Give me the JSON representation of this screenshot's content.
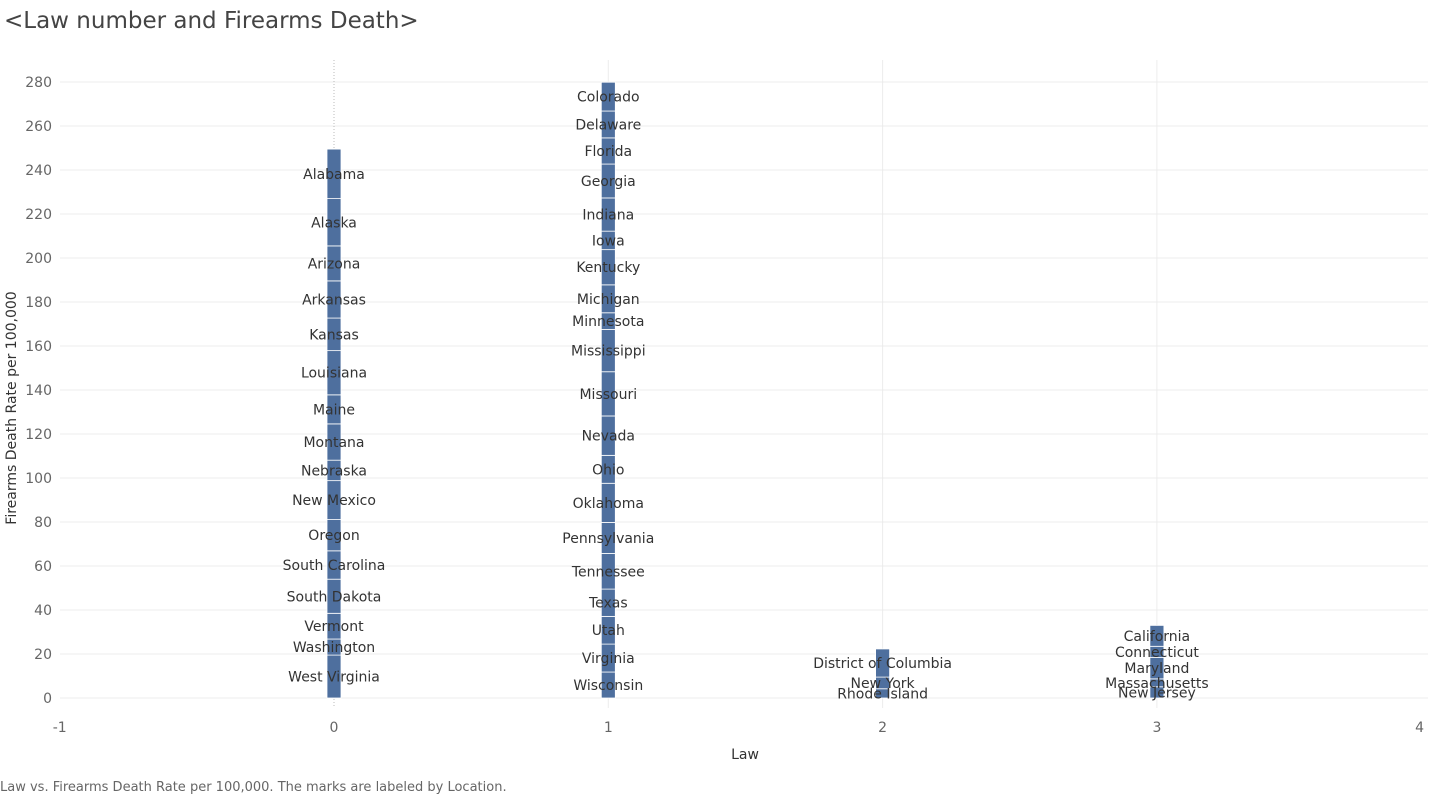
{
  "title": "<Law number and Firearms Death>",
  "footer": "Law vs. Firearms Death Rate per 100,000.  The marks are labeled by Location.",
  "colors": {
    "bar": "#4e6f9e",
    "segment_border": "#ffffff",
    "grid": "#ececec",
    "zero_line": "#bbbbbb"
  },
  "chart_data": {
    "type": "bar",
    "stacked": true,
    "xlabel": "Law",
    "ylabel": "Firearms Death Rate per 100,000",
    "xlim": [
      -1,
      4
    ],
    "ylim": [
      0,
      280
    ],
    "xticks": [
      -1,
      0,
      1,
      2,
      3,
      4
    ],
    "yticks": [
      0,
      20,
      40,
      60,
      80,
      100,
      120,
      140,
      160,
      180,
      200,
      220,
      240,
      260,
      280
    ],
    "grid": true,
    "bars": [
      {
        "x": 0,
        "states": [
          "West Virginia",
          "Washington",
          "Vermont",
          "South Dakota",
          "South Carolina",
          "Oregon",
          "New Mexico",
          "Nebraska",
          "Montana",
          "Maine",
          "Louisiana",
          "Kansas",
          "Arkansas",
          "Arizona",
          "Alaska",
          "Alabama"
        ],
        "values": [
          19.5,
          7.3,
          11.7,
          15.5,
          12.9,
          14.2,
          17.7,
          9.3,
          16.5,
          13.2,
          20.1,
          14.8,
          16.9,
          15.9,
          21.5,
          22.5
        ]
      },
      {
        "x": 1,
        "states": [
          "Wisconsin",
          "Virginia",
          "Utah",
          "Texas",
          "Tennessee",
          "Pennsylvania",
          "Oklahoma",
          "Ohio",
          "Nevada",
          "Missouri",
          "Mississippi",
          "Minnesota",
          "Michigan",
          "Kentucky",
          "Iowa",
          "Indiana",
          "Georgia",
          "Florida",
          "Delaware",
          "Colorado"
        ],
        "values": [
          11.8,
          12.7,
          12.6,
          12.4,
          16.2,
          14.1,
          17.8,
          12.7,
          17.9,
          20.1,
          19.2,
          7.6,
          12.7,
          16.0,
          8.4,
          15.1,
          15.4,
          11.9,
          12.2,
          13.1
        ]
      },
      {
        "x": 2,
        "states": [
          "Rhode Island",
          "New York",
          "District of Columbia"
        ],
        "values": [
          4.2,
          5.3,
          12.8
        ]
      },
      {
        "x": 3,
        "states": [
          "New Jersey",
          "Massachusetts",
          "Maryland",
          "Connecticut",
          "California"
        ],
        "values": [
          5.1,
          3.6,
          9.7,
          5.1,
          9.5
        ]
      }
    ]
  }
}
